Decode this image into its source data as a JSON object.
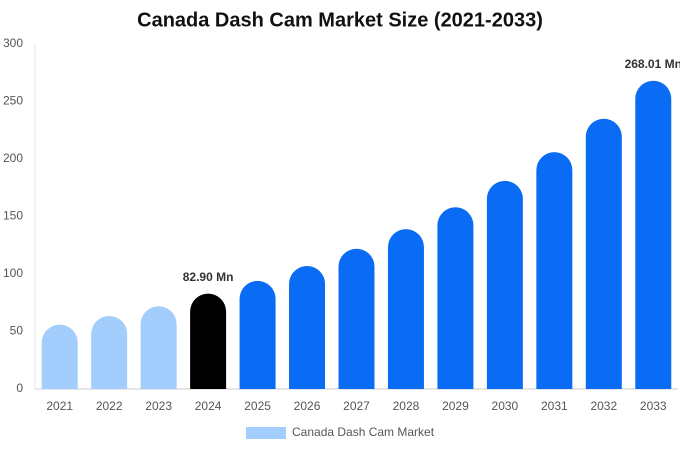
{
  "chart_data": {
    "type": "bar",
    "title": "Canada Dash Cam Market Size (2021-2033)",
    "categories": [
      "2021",
      "2022",
      "2023",
      "2024",
      "2025",
      "2026",
      "2027",
      "2028",
      "2029",
      "2030",
      "2031",
      "2032",
      "2033"
    ],
    "series": [
      {
        "name": "Canada Dash Cam Market",
        "color": "#a3cdfc",
        "colors": [
          "#a3cdfc",
          "#a3cdfc",
          "#a3cdfc",
          "#000000",
          "#0a6cf5",
          "#0a6cf5",
          "#0a6cf5",
          "#0a6cf5",
          "#0a6cf5",
          "#0a6cf5",
          "#0a6cf5",
          "#0a6cf5",
          "#0a6cf5"
        ],
        "values": [
          56,
          63.5,
          72,
          82.9,
          94,
          107,
          122,
          139,
          158,
          181,
          206,
          235,
          268.01
        ],
        "value_labels": [
          null,
          null,
          null,
          "82.90 Mn",
          null,
          null,
          null,
          null,
          null,
          null,
          null,
          null,
          "268.01 Mn"
        ]
      }
    ],
    "ylim": [
      0,
      300
    ],
    "yticks": [
      0,
      50,
      100,
      150,
      200,
      250,
      300
    ],
    "grid": false
  }
}
